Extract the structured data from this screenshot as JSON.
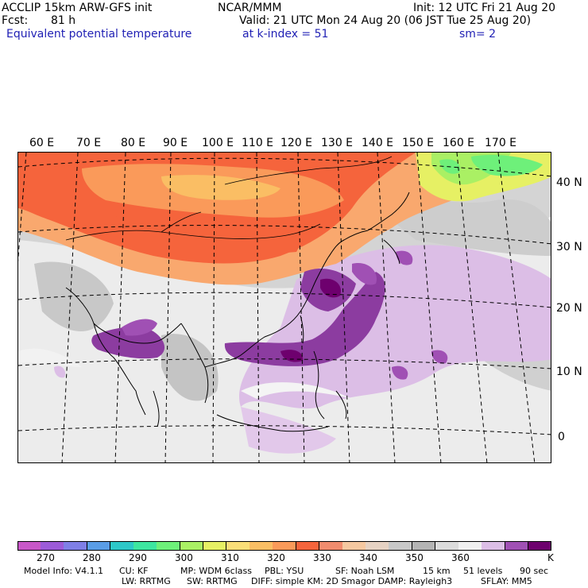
{
  "header": {
    "model_title": "ACCLIP 15km ARW-GFS init",
    "org": "NCAR/MMM",
    "init": "Init: 12 UTC Fri 21 Aug 20",
    "fcst_label": "Fcst:",
    "fcst_value": "81 h",
    "valid": "Valid: 21 UTC Mon 24 Aug 20 (06 JST Tue 25 Aug 20)",
    "field": "Equivalent potential temperature",
    "level": "at k-index =  51",
    "smoothing": "sm= 2"
  },
  "map": {
    "lon_labels": [
      "60 E",
      "70 E",
      "80 E",
      "90 E",
      "100 E",
      "110 E",
      "120 E",
      "130 E",
      "140 E",
      "150 E",
      "160 E",
      "170 E"
    ],
    "lat_labels": [
      "40 N",
      "30 N",
      "20 N",
      "10 N",
      "0"
    ]
  },
  "colorbar": {
    "unit": "K",
    "labels": [
      "270",
      "280",
      "290",
      "300",
      "310",
      "320",
      "330",
      "340",
      "350",
      "360"
    ],
    "colors": [
      "#c857c8",
      "#9c5bd8",
      "#7f7fe6",
      "#5a9de6",
      "#2dc8c8",
      "#3de6a0",
      "#6ef07a",
      "#aaf064",
      "#e6f064",
      "#fade78",
      "#fabe64",
      "#fa9a5a",
      "#f5643c",
      "#f08c6e",
      "#f5c8a0",
      "#e6d2c3",
      "#c8c8c8",
      "#b4b4b4",
      "#dcdcdc",
      "#f0f0f0",
      "#dcbee6",
      "#a050b4",
      "#6e006e"
    ]
  },
  "footer": {
    "model_info": "Model Info: V4.1.1",
    "cu": "CU: KF",
    "mp": "MP: WDM 6class",
    "pbl": "PBL: YSU",
    "sf": "SF: Noah LSM",
    "res": "15 km",
    "levels": "51 levels",
    "dt": "90 sec",
    "lw": "LW: RRTMG",
    "sw": "SW: RRTMG",
    "diff": "DIFF: simple KM: 2D Smagor DAMP: Rayleigh3",
    "sflay": "SFLAY: MM5"
  }
}
